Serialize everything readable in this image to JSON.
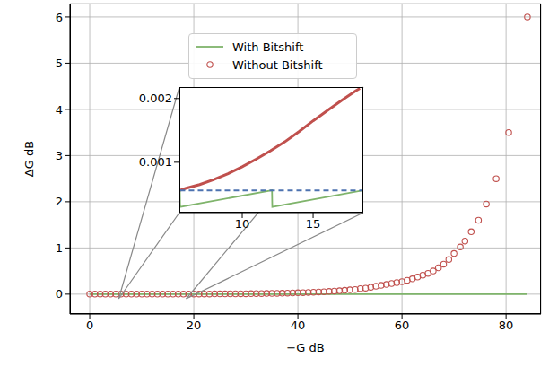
{
  "chart_data": [
    {
      "type": "line",
      "xlabel": "−G dB",
      "ylabel": "ΔG dB",
      "xlim": [
        -3.8,
        86.7
      ],
      "ylim": [
        -0.43,
        6.29
      ],
      "xticks": [
        0,
        20,
        40,
        60,
        80
      ],
      "yticks": [
        0,
        1,
        2,
        3,
        4,
        5,
        6
      ],
      "grid": true,
      "legend": "upper center",
      "series": [
        {
          "name": "With Bitshift",
          "type": "line",
          "line_style": "solid",
          "color": "#7fb46b",
          "x": [
            0,
            84.1
          ],
          "values": [
            0.00056,
            0.00056
          ]
        },
        {
          "name": "Without Bitshift",
          "type": "scatter",
          "marker": "circle",
          "color": "#c0504d",
          "x": [
            0,
            1,
            2,
            3,
            4,
            5,
            6,
            7,
            8,
            9,
            10,
            11,
            12,
            13,
            14,
            15,
            16,
            17,
            18,
            19,
            20,
            21,
            22,
            23,
            24,
            25,
            26,
            27,
            28,
            29,
            30,
            31,
            32,
            33,
            34,
            35,
            36,
            37,
            38,
            39,
            40,
            41,
            42,
            43,
            44,
            45,
            46,
            47,
            48,
            49,
            50,
            51,
            52,
            53,
            54,
            55,
            56,
            57,
            58,
            59,
            60,
            61,
            62,
            63,
            64,
            65,
            66,
            67,
            68,
            69,
            70,
            71.2,
            72.1,
            73.3,
            74.7,
            76.2,
            78.1,
            80.5,
            84.1
          ],
          "values": [
            0.0003,
            0.00033,
            0.00037,
            0.00042,
            0.00047,
            0.00052,
            0.00059,
            0.00065,
            0.00073,
            0.00082,
            0.00093,
            0.00105,
            0.00118,
            0.00132,
            0.00148,
            0.00165,
            0.00181,
            0.00197,
            0.00212,
            0.0024,
            0.0027,
            0.0033,
            0.0037,
            0.0041,
            0.0047,
            0.0052,
            0.0059,
            0.0066,
            0.0074,
            0.0083,
            0.0093,
            0.01,
            0.012,
            0.013,
            0.015,
            0.017,
            0.019,
            0.021,
            0.023,
            0.026,
            0.029,
            0.033,
            0.037,
            0.041,
            0.047,
            0.052,
            0.059,
            0.066,
            0.074,
            0.083,
            0.093,
            0.1,
            0.12,
            0.13,
            0.15,
            0.17,
            0.19,
            0.21,
            0.23,
            0.25,
            0.27,
            0.3,
            0.33,
            0.37,
            0.41,
            0.45,
            0.5,
            0.57,
            0.65,
            0.75,
            0.88,
            1.02,
            1.15,
            1.35,
            1.6,
            1.95,
            2.5,
            3.5,
            6.0
          ]
        }
      ]
    },
    {
      "type": "line",
      "xlim": [
        5.57,
        18.54
      ],
      "ylim": [
        0.00021,
        0.00218
      ],
      "xticks": [
        10,
        15
      ],
      "yticks": [
        0.001,
        0.002
      ],
      "grid": false,
      "series": [
        {
          "type": "line",
          "line_style": "solid",
          "color": "#c0504d",
          "x": [
            5.6,
            6,
            7,
            8,
            9,
            10,
            11,
            12,
            13,
            14,
            15,
            16,
            17,
            18,
            18.3
          ],
          "values": [
            0.00056,
            0.00059,
            0.00065,
            0.00073,
            0.00082,
            0.00093,
            0.00105,
            0.00118,
            0.00132,
            0.00148,
            0.00165,
            0.00181,
            0.00197,
            0.00212,
            0.00216
          ]
        },
        {
          "type": "line",
          "line_style": "solid",
          "color": "#7fb46b",
          "x": [
            5.6,
            5.62,
            12.1,
            12.12,
            18.54
          ],
          "values": [
            0.00056,
            0.0003,
            0.00056,
            0.0003,
            0.00056
          ]
        },
        {
          "type": "line",
          "line_style": "dashed",
          "color": "#4c72b0",
          "x": [
            5.6,
            18.54
          ],
          "values": [
            0.00056,
            0.00056
          ]
        }
      ]
    }
  ]
}
